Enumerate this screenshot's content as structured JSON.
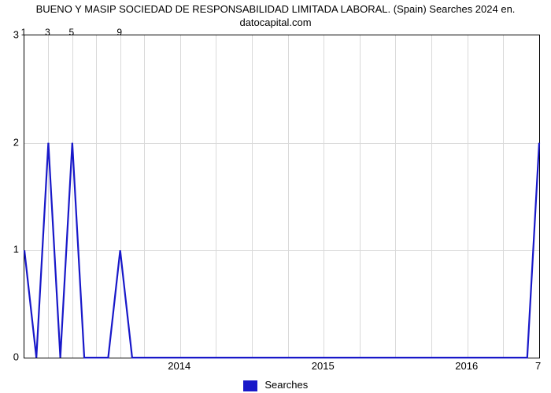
{
  "chart": {
    "type": "line",
    "title_line1": "BUENO Y MASIP SOCIEDAD DE RESPONSABILIDAD LIMITADA LABORAL. (Spain) Searches 2024 en.",
    "title_line2": "datocapital.com",
    "title_fontsize": 13,
    "line_color": "#1818c9",
    "line_width": 2.2,
    "background_color": "#ffffff",
    "grid_color": "#d9d9d9",
    "axis_color": "#000000",
    "ylim": [
      0,
      3
    ],
    "ytick_step": 1,
    "y_ticks": [
      0,
      1,
      2,
      3
    ],
    "x_ticks_top": [
      "1",
      "3",
      "5",
      "9"
    ],
    "x_ticks_top_positions": [
      0,
      2,
      4,
      8
    ],
    "x_ticks_bottom": [
      "2014",
      "2015",
      "2016"
    ],
    "x_ticks_bottom_positions": [
      13,
      25,
      37
    ],
    "far_right_label": "7",
    "n_points": 44,
    "minor_grid_positions": [
      0,
      2,
      4,
      6,
      8,
      10,
      13,
      16,
      19,
      22,
      25,
      28,
      31,
      34,
      37,
      40,
      43
    ],
    "data": [
      1,
      0,
      2,
      0,
      2,
      0,
      0,
      0,
      1,
      0,
      0,
      0,
      0,
      0,
      0,
      0,
      0,
      0,
      0,
      0,
      0,
      0,
      0,
      0,
      0,
      0,
      0,
      0,
      0,
      0,
      0,
      0,
      0,
      0,
      0,
      0,
      0,
      0,
      0,
      0,
      0,
      0,
      0,
      2
    ],
    "legend_label": "Searches",
    "label_fontsize": 13
  }
}
